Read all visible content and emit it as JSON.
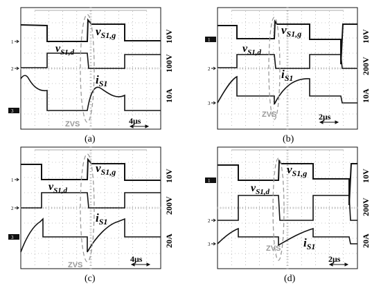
{
  "colors": {
    "trace": "#111111",
    "grid": "#8a8a8a",
    "zvs": "#9a9a9a",
    "marker_fill": "#111111",
    "marker_text": "#ffffff"
  },
  "panels": [
    {
      "id": "a",
      "caption": "(a)",
      "labels": {
        "gate": "v",
        "gate_sub": "S1,g",
        "drain": "v",
        "drain_sub": "S1,d",
        "current": "i",
        "current_sub": "S1"
      },
      "scales": {
        "gate": "10V",
        "drain": "100V",
        "current": "10A",
        "time": "4μs"
      },
      "zvs": "ZVS",
      "markers": {
        "ch1": "1",
        "ch2": "2",
        "ch3": "3"
      }
    },
    {
      "id": "b",
      "caption": "(b)",
      "labels": {
        "gate": "v",
        "gate_sub": "S1,g",
        "drain": "v",
        "drain_sub": "S1,d",
        "current": "i",
        "current_sub": "S1"
      },
      "scales": {
        "gate": "10V",
        "drain": "200V",
        "current": "10A",
        "time": "2μs"
      },
      "zvs": "ZVS",
      "markers": {
        "ch1": "1",
        "ch2": "2",
        "ch3": "3"
      }
    },
    {
      "id": "c",
      "caption": "(c)",
      "labels": {
        "gate": "v",
        "gate_sub": "S1,g",
        "drain": "v",
        "drain_sub": "S1,d",
        "current": "i",
        "current_sub": "S1"
      },
      "scales": {
        "gate": "10V",
        "drain": "200V",
        "current": "20A",
        "time": "4μs"
      },
      "zvs": "ZVS",
      "markers": {
        "ch1": "1",
        "ch2": "2",
        "ch3": "3"
      }
    },
    {
      "id": "d",
      "caption": "(d)",
      "labels": {
        "gate": "v",
        "gate_sub": "S1,g",
        "drain": "v",
        "drain_sub": "S1,d",
        "current": "i",
        "current_sub": "S1"
      },
      "scales": {
        "gate": "10V",
        "drain": "200V",
        "current": "20A",
        "time": "2μs"
      },
      "zvs": "ZVS",
      "markers": {
        "ch1": "1",
        "ch2": "2",
        "ch3": "3"
      }
    }
  ]
}
